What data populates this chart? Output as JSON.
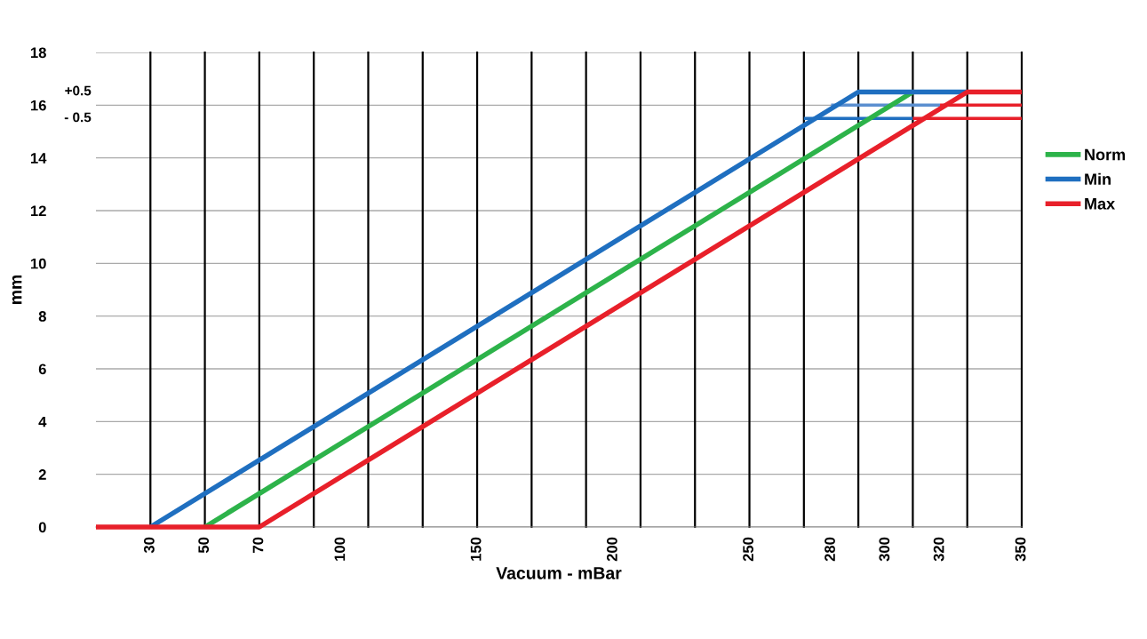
{
  "chart_data": {
    "type": "line",
    "xlabel": "Vacuum - mBar",
    "ylabel": "mm",
    "xlim": [
      10,
      350
    ],
    "ylim": [
      0,
      18
    ],
    "xticks": [
      30,
      50,
      70,
      100,
      150,
      200,
      250,
      280,
      300,
      320,
      350
    ],
    "yticks": [
      0,
      2,
      4,
      6,
      8,
      10,
      12,
      14,
      16,
      18
    ],
    "annotations": [
      "+0.5",
      "- 0.5"
    ],
    "grid": "y",
    "legend": "right",
    "line_style": "solid",
    "marker": "none",
    "ref_lines": [
      {
        "axis": "x",
        "value": 30,
        "color": "#000000"
      },
      {
        "axis": "x",
        "value": 50,
        "color": "#000000"
      },
      {
        "axis": "x",
        "value": 70,
        "color": "#000000"
      },
      {
        "axis": "x",
        "value": 90,
        "color": "#000000"
      },
      {
        "axis": "x",
        "value": 110,
        "color": "#000000"
      },
      {
        "axis": "x",
        "value": 130,
        "color": "#000000"
      },
      {
        "axis": "x",
        "value": 150,
        "color": "#000000"
      },
      {
        "axis": "x",
        "value": 170,
        "color": "#000000"
      },
      {
        "axis": "x",
        "value": 190,
        "color": "#000000"
      },
      {
        "axis": "x",
        "value": 210,
        "color": "#000000"
      },
      {
        "axis": "x",
        "value": 230,
        "color": "#000000"
      },
      {
        "axis": "x",
        "value": 250,
        "color": "#000000"
      },
      {
        "axis": "x",
        "value": 270,
        "color": "#000000"
      },
      {
        "axis": "x",
        "value": 290,
        "color": "#000000"
      },
      {
        "axis": "x",
        "value": 310,
        "color": "#000000"
      },
      {
        "axis": "x",
        "value": 330,
        "color": "#000000"
      }
    ],
    "series": [
      {
        "color": "#1f6fc0",
        "x": [
          270,
          310
        ],
        "values": [
          15.5,
          15.5
        ]
      },
      {
        "color": "#5b8fd0",
        "x": [
          280,
          320
        ],
        "values": [
          16,
          16
        ]
      },
      {
        "color": "#e8202a",
        "x": [
          310,
          350
        ],
        "values": [
          15.5,
          15.5
        ]
      },
      {
        "color": "#e8202a",
        "x": [
          320,
          350
        ],
        "values": [
          16,
          16
        ]
      },
      {
        "name": "Norm",
        "color": "#2db34a",
        "x": [
          50,
          310
        ],
        "values": [
          0,
          16.5
        ]
      },
      {
        "name": "Min",
        "color": "#1f6fc0",
        "x": [
          30,
          290,
          330
        ],
        "values": [
          0,
          16.5,
          16.5
        ]
      },
      {
        "name": "Max",
        "color": "#e8202a",
        "x": [
          10,
          70,
          330,
          350
        ],
        "values": [
          0,
          0,
          16.5,
          16.5
        ]
      }
    ]
  }
}
